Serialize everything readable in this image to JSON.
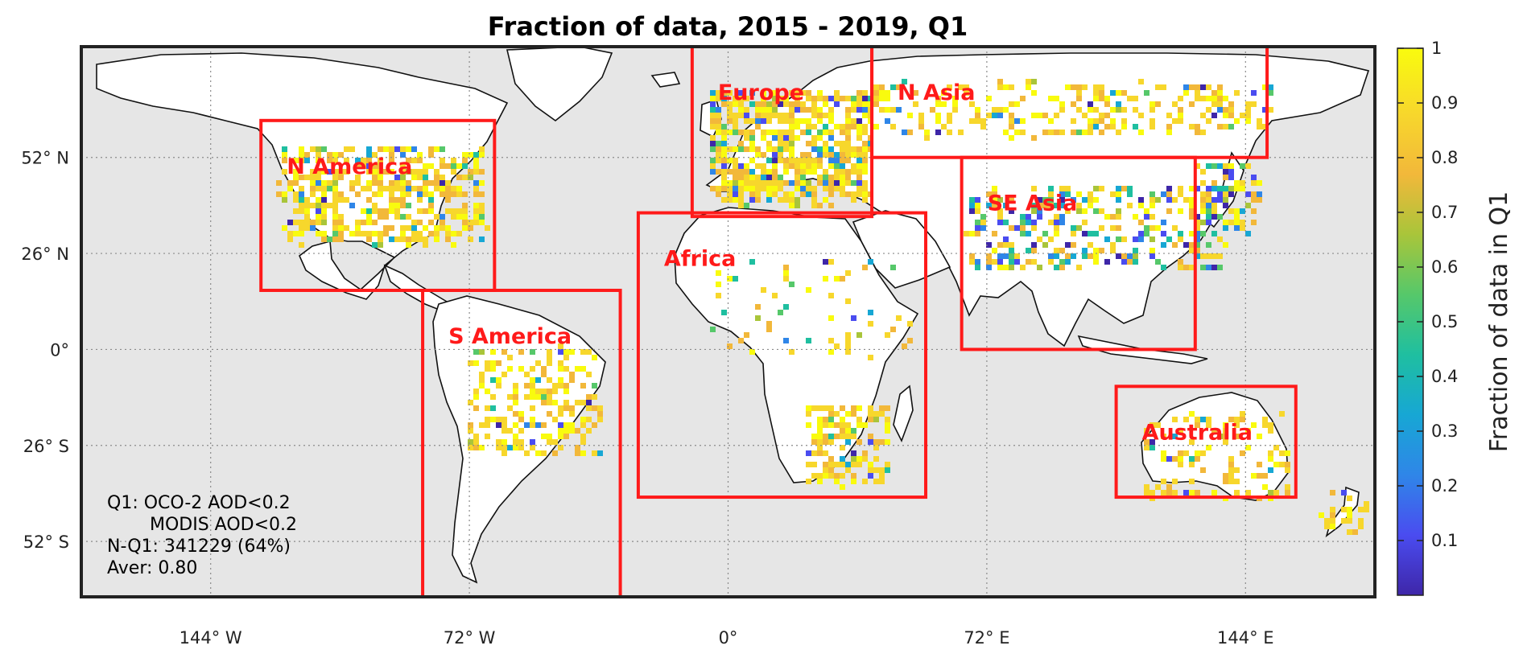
{
  "title": "Fraction of data, 2015 - 2019, Q1",
  "axes": {
    "lon_ticks": [
      {
        "value": -144,
        "label": "144° W"
      },
      {
        "value": -72,
        "label": "72° W"
      },
      {
        "value": 0,
        "label": "0°"
      },
      {
        "value": 72,
        "label": "72° E"
      },
      {
        "value": 144,
        "label": "144° E"
      }
    ],
    "lat_ticks": [
      {
        "value": 52,
        "label": "52° N"
      },
      {
        "value": 26,
        "label": "26° N"
      },
      {
        "value": 0,
        "label": "0°"
      },
      {
        "value": -26,
        "label": "26° S"
      },
      {
        "value": -52,
        "label": "52° S"
      }
    ],
    "lon_range": [
      -180,
      180
    ],
    "lat_range": [
      -67,
      82
    ],
    "grid": true
  },
  "colorbar": {
    "label": "Fraction of data in Q1",
    "ticks": [
      "0.1",
      "0.2",
      "0.3",
      "0.4",
      "0.5",
      "0.6",
      "0.7",
      "0.8",
      "0.9",
      "1"
    ],
    "tick_values": [
      0.1,
      0.2,
      0.3,
      0.4,
      0.5,
      0.6,
      0.7,
      0.8,
      0.9,
      1.0
    ],
    "range": [
      0,
      1
    ],
    "colormap": [
      "#3e26a8",
      "#4a4cf0",
      "#2f86e8",
      "#17a7d4",
      "#1fbfa0",
      "#56c86a",
      "#a9c53a",
      "#f2b83a",
      "#f7d72c",
      "#f9fb0e"
    ]
  },
  "regions": [
    {
      "name": "N America",
      "lon": [
        -130,
        -65
      ],
      "lat": [
        16,
        62
      ]
    },
    {
      "name": "S America",
      "lon": [
        -85,
        -30
      ],
      "lat": [
        -67,
        16
      ]
    },
    {
      "name": "Europe",
      "lon": [
        -10,
        40
      ],
      "lat": [
        36,
        82
      ]
    },
    {
      "name": "N Asia",
      "lon": [
        40,
        150
      ],
      "lat": [
        52,
        82
      ]
    },
    {
      "name": "Africa",
      "lon": [
        -25,
        55
      ],
      "lat": [
        -40,
        37
      ]
    },
    {
      "name": "SE Asia",
      "lon": [
        65,
        130
      ],
      "lat": [
        0,
        52
      ]
    },
    {
      "name": "Australia",
      "lon": [
        108,
        158
      ],
      "lat": [
        -40,
        -10
      ]
    }
  ],
  "annotation": {
    "line1": "Q1: OCO-2 AOD<0.2",
    "line2": "MODIS AOD<0.2",
    "line3": "N-Q1: 341229 (64%)",
    "line4": "Aver: 0.80"
  },
  "colors": {
    "ocean": "#e6e6e6",
    "land": "#ffffff",
    "region_box": "#ff1a1a",
    "frame": "#222222"
  }
}
